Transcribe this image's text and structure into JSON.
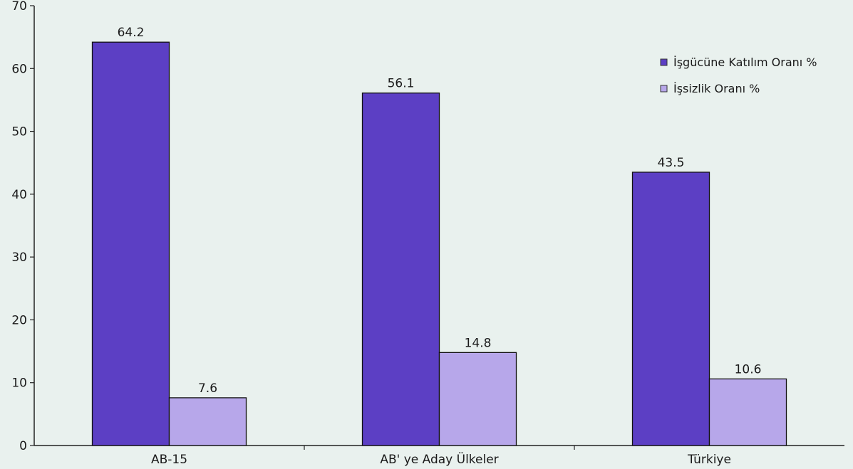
{
  "chart_data": {
    "type": "bar",
    "categories": [
      "AB-15",
      "AB' ye Aday Ülkeler",
      "Türkiye"
    ],
    "series": [
      {
        "name": "İşgücüne Katılım Oranı %",
        "values": [
          64.2,
          56.1,
          43.5
        ],
        "color": "#5c3fc4"
      },
      {
        "name": "İşsizlik Oranı %",
        "values": [
          7.6,
          14.8,
          10.6
        ],
        "color": "#b7a7ea"
      }
    ],
    "ylim": [
      0,
      70
    ],
    "yticks": [
      0,
      10,
      20,
      30,
      40,
      50,
      60,
      70
    ],
    "grid": false,
    "legend_position": "top-right",
    "title": "",
    "xlabel": "",
    "ylabel": ""
  }
}
